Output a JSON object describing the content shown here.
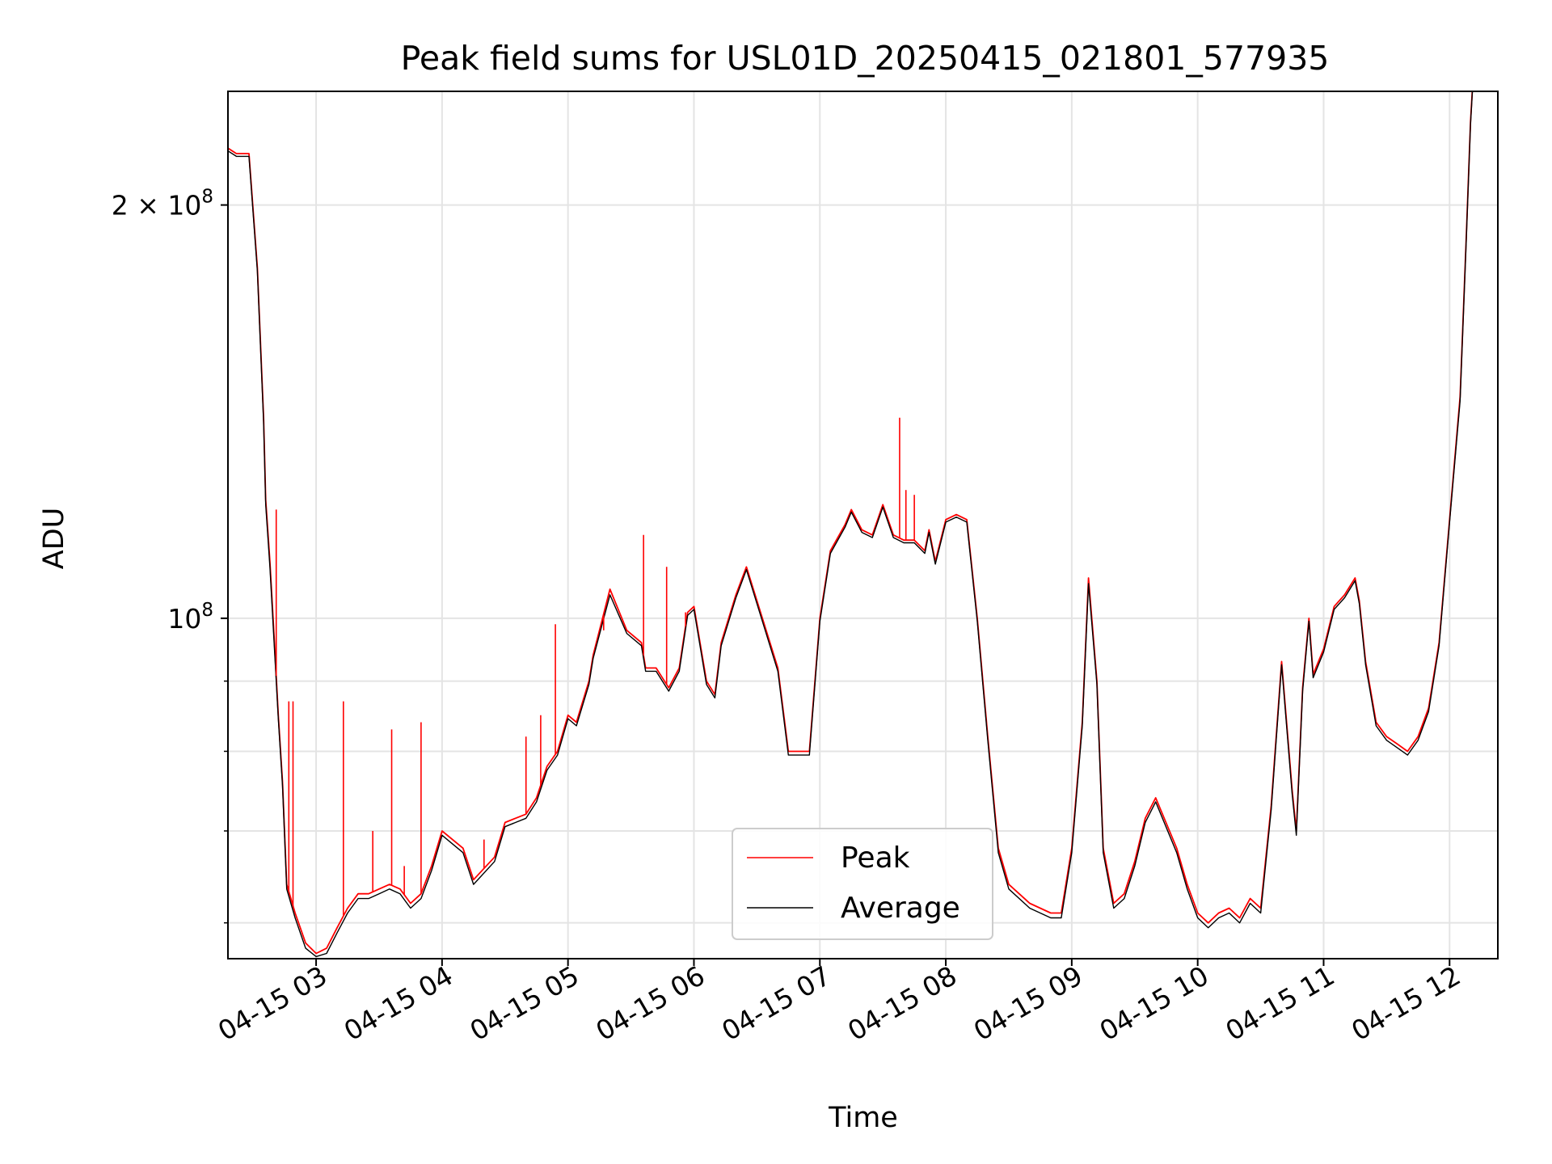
{
  "chart_data": {
    "type": "line",
    "title": "Peak field sums for USL01D_20250415_021801_577935",
    "xlabel": "Time",
    "ylabel": "ADU",
    "y_scale": "log",
    "ylim": [
      56500000,
      242000000
    ],
    "xlim": [
      "04-15 02:18",
      "04-15 12:23"
    ],
    "grid": true,
    "legend": "lower center",
    "x_ticks": [
      "04-15 03",
      "04-15 04",
      "04-15 05",
      "04-15 06",
      "04-15 07",
      "04-15 08",
      "04-15 09",
      "04-15 10",
      "04-15 11",
      "04-15 12"
    ],
    "y_ticks": [
      {
        "value": 200000000,
        "label_base": "2 × 10",
        "label_exp": "8"
      },
      {
        "value": 100000000,
        "label_base": "10",
        "label_exp": "8"
      }
    ],
    "y_minor_ticks": [
      60000000,
      70000000,
      80000000,
      90000000
    ],
    "series": [
      {
        "name": "Peak",
        "color": "#ff0000",
        "x": [
          "04-15 02:18",
          "04-15 02:22",
          "04-15 02:25",
          "04-15 02:28",
          "04-15 02:32",
          "04-15 02:35",
          "04-15 02:36",
          "04-15 02:38",
          "04-15 02:40",
          "04-15 02:42",
          "04-15 02:44",
          "04-15 02:46",
          "04-15 02:50",
          "04-15 02:55",
          "04-15 03:00",
          "04-15 03:05",
          "04-15 03:10",
          "04-15 03:15",
          "04-15 03:20",
          "04-15 03:25",
          "04-15 03:30",
          "04-15 03:35",
          "04-15 03:40",
          "04-15 03:45",
          "04-15 03:50",
          "04-15 03:55",
          "04-15 04:00",
          "04-15 04:10",
          "04-15 04:15",
          "04-15 04:25",
          "04-15 04:30",
          "04-15 04:35",
          "04-15 04:40",
          "04-15 04:45",
          "04-15 04:50",
          "04-15 04:55",
          "04-15 05:00",
          "04-15 05:04",
          "04-15 05:10",
          "04-15 05:12",
          "04-15 05:20",
          "04-15 05:28",
          "04-15 05:35",
          "04-15 05:37",
          "04-15 05:42",
          "04-15 05:48",
          "04-15 05:53",
          "04-15 05:57",
          "04-15 06:00",
          "04-15 06:06",
          "04-15 06:10",
          "04-15 06:13",
          "04-15 06:20",
          "04-15 06:25",
          "04-15 06:30",
          "04-15 06:40",
          "04-15 06:45",
          "04-15 06:55",
          "04-15 07:00",
          "04-15 07:05",
          "04-15 07:12",
          "04-15 07:15",
          "04-15 07:20",
          "04-15 07:25",
          "04-15 07:30",
          "04-15 07:35",
          "04-15 07:40",
          "04-15 07:45",
          "04-15 07:50",
          "04-15 07:52",
          "04-15 07:55",
          "04-15 08:00",
          "04-15 08:05",
          "04-15 08:10",
          "04-15 08:15",
          "04-15 08:20",
          "04-15 08:25",
          "04-15 08:30",
          "04-15 08:40",
          "04-15 08:50",
          "04-15 08:55",
          "04-15 09:00",
          "04-15 09:05",
          "04-15 09:08",
          "04-15 09:12",
          "04-15 09:15",
          "04-15 09:20",
          "04-15 09:25",
          "04-15 09:30",
          "04-15 09:35",
          "04-15 09:40",
          "04-15 09:50",
          "04-15 09:55",
          "04-15 10:00",
          "04-15 10:05",
          "04-15 10:10",
          "04-15 10:15",
          "04-15 10:20",
          "04-15 10:25",
          "04-15 10:30",
          "04-15 10:35",
          "04-15 10:40",
          "04-15 10:45",
          "04-15 10:47",
          "04-15 10:50",
          "04-15 10:53",
          "04-15 10:55",
          "04-15 11:00",
          "04-15 11:05",
          "04-15 11:10",
          "04-15 11:15",
          "04-15 11:17",
          "04-15 11:20",
          "04-15 11:25",
          "04-15 11:30",
          "04-15 11:35",
          "04-15 11:40",
          "04-15 11:45",
          "04-15 11:50",
          "04-15 11:55",
          "04-15 12:00",
          "04-15 12:05",
          "04-15 12:08",
          "04-15 12:10",
          "04-15 12:12"
        ],
        "y": [
          220000000,
          218000000,
          218000000,
          218000000,
          180000000,
          140000000,
          122000000,
          110000000,
          97000000,
          85000000,
          76000000,
          64000000,
          61000000,
          58000000,
          57000000,
          57500000,
          59500000,
          61500000,
          63000000,
          63000000,
          63500000,
          64000000,
          63500000,
          62000000,
          63000000,
          66000000,
          70000000,
          68000000,
          64500000,
          67000000,
          71000000,
          71500000,
          72000000,
          74000000,
          78000000,
          80000000,
          85000000,
          84000000,
          90000000,
          94000000,
          105000000,
          98000000,
          96000000,
          92000000,
          92000000,
          89000000,
          92000000,
          101000000,
          102000000,
          90000000,
          88000000,
          96000000,
          104000000,
          109000000,
          103000000,
          92000000,
          80000000,
          80000000,
          100000000,
          112000000,
          117000000,
          120000000,
          116000000,
          115000000,
          121000000,
          115000000,
          114000000,
          114000000,
          112000000,
          116000000,
          110000000,
          118000000,
          119000000,
          118000000,
          100000000,
          82000000,
          68000000,
          64000000,
          62000000,
          61000000,
          61000000,
          68000000,
          84000000,
          107000000,
          90000000,
          68000000,
          62000000,
          63000000,
          66500000,
          71500000,
          74000000,
          68000000,
          64000000,
          61000000,
          60000000,
          61000000,
          61500000,
          60500000,
          62500000,
          61500000,
          73000000,
          93000000,
          75000000,
          70000000,
          89000000,
          100000000,
          91000000,
          95000000,
          102000000,
          104000000,
          107000000,
          103000000,
          93000000,
          84000000,
          82000000,
          81000000,
          80000000,
          82000000,
          86000000,
          96000000,
          118000000,
          145000000,
          190000000,
          230000000,
          260000000
        ]
      },
      {
        "name": "Average",
        "color": "#000000",
        "x": [
          "04-15 02:18",
          "04-15 02:22",
          "04-15 02:25",
          "04-15 02:28",
          "04-15 02:32",
          "04-15 02:35",
          "04-15 02:36",
          "04-15 02:38",
          "04-15 02:40",
          "04-15 02:42",
          "04-15 02:44",
          "04-15 02:46",
          "04-15 02:50",
          "04-15 02:55",
          "04-15 03:00",
          "04-15 03:05",
          "04-15 03:10",
          "04-15 03:15",
          "04-15 03:20",
          "04-15 03:25",
          "04-15 03:30",
          "04-15 03:35",
          "04-15 03:40",
          "04-15 03:45",
          "04-15 03:50",
          "04-15 03:55",
          "04-15 04:00",
          "04-15 04:10",
          "04-15 04:15",
          "04-15 04:25",
          "04-15 04:30",
          "04-15 04:35",
          "04-15 04:40",
          "04-15 04:45",
          "04-15 04:50",
          "04-15 04:55",
          "04-15 05:00",
          "04-15 05:04",
          "04-15 05:10",
          "04-15 05:12",
          "04-15 05:20",
          "04-15 05:28",
          "04-15 05:35",
          "04-15 05:37",
          "04-15 05:42",
          "04-15 05:48",
          "04-15 05:53",
          "04-15 05:57",
          "04-15 06:00",
          "04-15 06:06",
          "04-15 06:10",
          "04-15 06:13",
          "04-15 06:20",
          "04-15 06:25",
          "04-15 06:30",
          "04-15 06:40",
          "04-15 06:45",
          "04-15 06:55",
          "04-15 07:00",
          "04-15 07:05",
          "04-15 07:12",
          "04-15 07:15",
          "04-15 07:20",
          "04-15 07:25",
          "04-15 07:30",
          "04-15 07:35",
          "04-15 07:40",
          "04-15 07:45",
          "04-15 07:50",
          "04-15 07:52",
          "04-15 07:55",
          "04-15 08:00",
          "04-15 08:05",
          "04-15 08:10",
          "04-15 08:15",
          "04-15 08:20",
          "04-15 08:25",
          "04-15 08:30",
          "04-15 08:40",
          "04-15 08:50",
          "04-15 08:55",
          "04-15 09:00",
          "04-15 09:05",
          "04-15 09:08",
          "04-15 09:12",
          "04-15 09:15",
          "04-15 09:20",
          "04-15 09:25",
          "04-15 09:30",
          "04-15 09:35",
          "04-15 09:40",
          "04-15 09:50",
          "04-15 09:55",
          "04-15 10:00",
          "04-15 10:05",
          "04-15 10:10",
          "04-15 10:15",
          "04-15 10:20",
          "04-15 10:25",
          "04-15 10:30",
          "04-15 10:35",
          "04-15 10:40",
          "04-15 10:45",
          "04-15 10:47",
          "04-15 10:50",
          "04-15 10:53",
          "04-15 10:55",
          "04-15 11:00",
          "04-15 11:05",
          "04-15 11:10",
          "04-15 11:15",
          "04-15 11:17",
          "04-15 11:20",
          "04-15 11:25",
          "04-15 11:30",
          "04-15 11:35",
          "04-15 11:40",
          "04-15 11:45",
          "04-15 11:50",
          "04-15 11:55",
          "04-15 12:00",
          "04-15 12:05",
          "04-15 12:08",
          "04-15 12:10",
          "04-15 12:12"
        ],
        "y": [
          219000000,
          217000000,
          217000000,
          217000000,
          179000000,
          139000000,
          121000000,
          109000000,
          96000000,
          84500000,
          75500000,
          63500000,
          60500000,
          57500000,
          56700000,
          57000000,
          59000000,
          61000000,
          62500000,
          62500000,
          63000000,
          63500000,
          63000000,
          61500000,
          62500000,
          65500000,
          69500000,
          67500000,
          64000000,
          66500000,
          70500000,
          71000000,
          71500000,
          73500000,
          77500000,
          79500000,
          84500000,
          83500000,
          89500000,
          93500000,
          104000000,
          97500000,
          95500000,
          91500000,
          91500000,
          88500000,
          91500000,
          100500000,
          101500000,
          89500000,
          87500000,
          95500000,
          103500000,
          108500000,
          102500000,
          91500000,
          79500000,
          79500000,
          99500000,
          111500000,
          116500000,
          119500000,
          115500000,
          114500000,
          120500000,
          114500000,
          113500000,
          113500000,
          111500000,
          115500000,
          109500000,
          117500000,
          118500000,
          117500000,
          99500000,
          81500000,
          67500000,
          63500000,
          61500000,
          60500000,
          60500000,
          67500000,
          83500000,
          106000000,
          89500000,
          67500000,
          61500000,
          62500000,
          66000000,
          71000000,
          73500000,
          67500000,
          63500000,
          60500000,
          59500000,
          60500000,
          61000000,
          60000000,
          62000000,
          61000000,
          72500000,
          92500000,
          74500000,
          69500000,
          88500000,
          99500000,
          90500000,
          94500000,
          101500000,
          103500000,
          106500000,
          102500000,
          92500000,
          83500000,
          81500000,
          80500000,
          79500000,
          81500000,
          85500000,
          95500000,
          117500000,
          144000000,
          189000000,
          229000000,
          259000000
        ]
      }
    ],
    "peak_spikes": [
      {
        "x": "04-15 02:41",
        "y": 120000000
      },
      {
        "x": "04-15 02:47",
        "y": 87000000
      },
      {
        "x": "04-15 02:49",
        "y": 87000000
      },
      {
        "x": "04-15 03:13",
        "y": 87000000
      },
      {
        "x": "04-15 03:27",
        "y": 70000000
      },
      {
        "x": "04-15 03:36",
        "y": 83000000
      },
      {
        "x": "04-15 03:42",
        "y": 66000000
      },
      {
        "x": "04-15 03:50",
        "y": 84000000
      },
      {
        "x": "04-15 04:20",
        "y": 69000000
      },
      {
        "x": "04-15 04:40",
        "y": 82000000
      },
      {
        "x": "04-15 04:47",
        "y": 85000000
      },
      {
        "x": "04-15 04:54",
        "y": 99000000
      },
      {
        "x": "04-15 05:17",
        "y": 98000000
      },
      {
        "x": "04-15 05:36",
        "y": 115000000
      },
      {
        "x": "04-15 05:47",
        "y": 109000000
      },
      {
        "x": "04-15 05:56",
        "y": 101000000
      },
      {
        "x": "04-15 07:38",
        "y": 140000000
      },
      {
        "x": "04-15 07:41",
        "y": 124000000
      },
      {
        "x": "04-15 07:45",
        "y": 123000000
      }
    ]
  }
}
